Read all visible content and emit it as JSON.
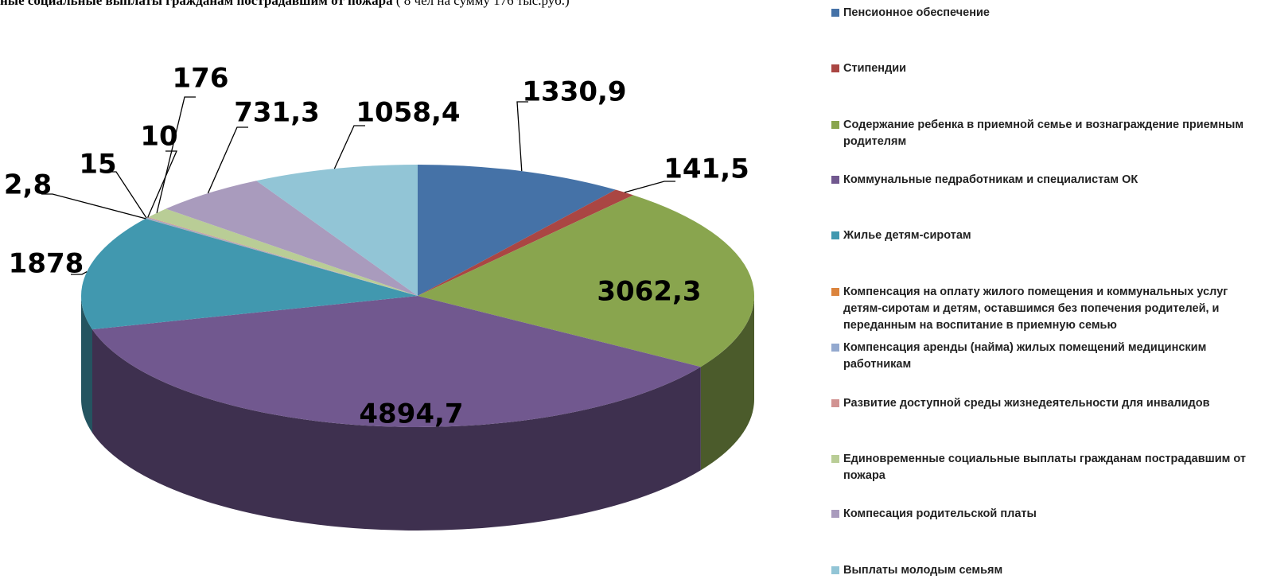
{
  "chart_data": {
    "type": "pie",
    "title": "ные социальные выплаты гражданам пострадавшим от пожара",
    "title_note": "( 8 чел на сумму 176 тыс.руб.)",
    "categories": [
      "Пенсионное обеспечение",
      "Стипендии",
      "Содержание ребенка в приемной семье и вознаграждение приемным родителям",
      "Коммунальные педработникам и специалистам ОК",
      "Жилье детям-сиротам",
      "Компенсация на оплату жилого помещения и коммунальных услуг детям-сиротам и детям, оставшимся без попечения родителей, и переданным на воспитание в приемную семью",
      "Компенсация   аренды (найма) жилых помещений медицинским работникам",
      "Развитие доступной среды жизнедеятельности для инвалидов",
      "Единовременные социальные выплаты гражданам пострадавшим от пожара",
      "Компесация родительской платы",
      "Выплаты молодым семьям"
    ],
    "values": [
      1330.9,
      141.5,
      3062.3,
      4894.7,
      1878,
      2.8,
      15,
      10,
      176,
      731.3,
      1058.4
    ],
    "value_labels": [
      "1330,9",
      "141,5",
      "3062,3",
      "4894,7",
      "1878",
      "2,8",
      "15",
      "10",
      "176",
      "731,3",
      "1058,4"
    ],
    "colors": [
      "#4572a7",
      "#aa4643",
      "#89a54e",
      "#71588f",
      "#4198af",
      "#db843d",
      "#93a9cf",
      "#d19392",
      "#b9cd96",
      "#a99bbd",
      "#92c5d6"
    ],
    "legend": "right"
  }
}
